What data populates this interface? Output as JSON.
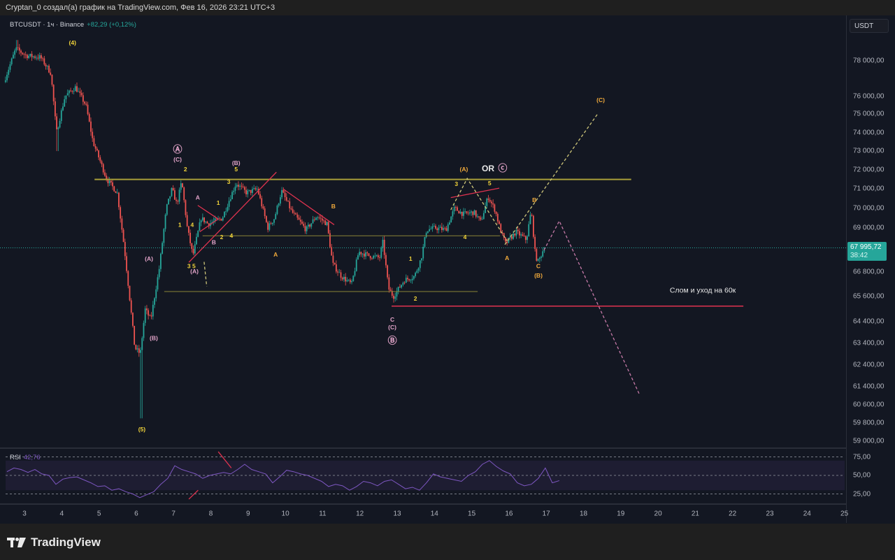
{
  "credit": "Cryptan_0 создал(а) график на TradingView.com, Фев 16, 2026 23:21 UTC+3",
  "legend": {
    "symbol": "BTCUSDT · 1ч · Binance",
    "change": "+82,29 (+0,12%)"
  },
  "currency_button": "USDT",
  "last_price": {
    "value": 67995.72,
    "label": "67 995,72",
    "countdown": "38:42"
  },
  "brand": "TradingView",
  "colors": {
    "bg": "#131722",
    "up": "#26a69a",
    "down": "#ef5350",
    "rsi": "#7e57c2",
    "wave_yellow": "#f2d43a",
    "wave_orange": "#f0a93b",
    "wave_pink": "#e1a3c8",
    "level_olive": "#a99f3a",
    "red_line": "#e0334f"
  },
  "chart_data": [
    {
      "type": "candlestick",
      "scale": "log",
      "x_unit": "day of February 2026 (1h candles)",
      "x_ticks": [
        "3",
        "4",
        "5",
        "6",
        "7",
        "8",
        "9",
        "10",
        "11",
        "12",
        "13",
        "14",
        "15",
        "16",
        "17",
        "18",
        "19",
        "20",
        "21",
        "22",
        "23",
        "24",
        "25"
      ],
      "y_ticks": [
        "78 000,00",
        "76 000,00",
        "75 000,00",
        "74 000,00",
        "73 000,00",
        "72 000,00",
        "71 000,00",
        "70 000,00",
        "69 000,00",
        "66 800,00",
        "65 600,00",
        "64 400,00",
        "63 400,00",
        "62 400,00",
        "61 400,00",
        "60 600,00",
        "59 800,00",
        "59 000,00"
      ],
      "y_tick_values": [
        78000,
        76000,
        75000,
        74000,
        73000,
        72000,
        71000,
        70000,
        69000,
        66800,
        65600,
        64400,
        63400,
        62400,
        61400,
        60600,
        59800,
        59000
      ],
      "ylim": [
        58600,
        80500
      ],
      "xlim": [
        2.35,
        25.05
      ],
      "close_path": [
        [
          2.49,
          76800
        ],
        [
          2.81,
          78700
        ],
        [
          3.09,
          78300
        ],
        [
          3.47,
          78200
        ],
        [
          3.75,
          77300
        ],
        [
          3.9,
          74000
        ],
        [
          4.13,
          76000
        ],
        [
          4.41,
          76500
        ],
        [
          4.69,
          75500
        ],
        [
          4.88,
          73500
        ],
        [
          5.25,
          71500
        ],
        [
          5.53,
          70800
        ],
        [
          5.72,
          68000
        ],
        [
          6.0,
          63200
        ],
        [
          6.15,
          62900
        ],
        [
          6.28,
          65000
        ],
        [
          6.43,
          64500
        ],
        [
          6.66,
          67000
        ],
        [
          6.85,
          70000
        ],
        [
          7.0,
          71000
        ],
        [
          7.13,
          70200
        ],
        [
          7.26,
          71400
        ],
        [
          7.41,
          69000
        ],
        [
          7.56,
          67600
        ],
        [
          7.78,
          69500
        ],
        [
          7.97,
          69200
        ],
        [
          8.35,
          69500
        ],
        [
          8.53,
          70400
        ],
        [
          8.72,
          71300
        ],
        [
          9.0,
          70800
        ],
        [
          9.29,
          71000
        ],
        [
          9.57,
          69000
        ],
        [
          9.75,
          69500
        ],
        [
          9.94,
          70900
        ],
        [
          10.22,
          69800
        ],
        [
          10.6,
          68900
        ],
        [
          10.88,
          69600
        ],
        [
          11.16,
          69200
        ],
        [
          11.31,
          67200
        ],
        [
          11.54,
          66600
        ],
        [
          11.82,
          66200
        ],
        [
          12.01,
          67800
        ],
        [
          12.29,
          67600
        ],
        [
          12.57,
          67500
        ],
        [
          12.66,
          68300
        ],
        [
          12.81,
          66000
        ],
        [
          12.94,
          65600
        ],
        [
          13.23,
          66400
        ],
        [
          13.51,
          66600
        ],
        [
          13.69,
          67500
        ],
        [
          13.83,
          68900
        ],
        [
          14.07,
          69000
        ],
        [
          14.35,
          68900
        ],
        [
          14.58,
          70000
        ],
        [
          14.82,
          69700
        ],
        [
          15.1,
          69800
        ],
        [
          15.29,
          69300
        ],
        [
          15.48,
          70600
        ],
        [
          15.67,
          69900
        ],
        [
          15.81,
          68900
        ],
        [
          15.95,
          68200
        ],
        [
          16.23,
          68800
        ],
        [
          16.51,
          68400
        ],
        [
          16.64,
          69900
        ],
        [
          16.75,
          67600
        ],
        [
          16.83,
          67300
        ],
        [
          16.98,
          67996
        ]
      ],
      "extreme_wicks": [
        [
          6.15,
          60000
        ],
        [
          2.81,
          79200
        ],
        [
          3.9,
          73000
        ]
      ],
      "levels": [
        {
          "price": 71500,
          "from": 4.88,
          "to": 19.28,
          "color": "#a99f3a",
          "width": 2
        },
        {
          "price": 68600,
          "from": 7.78,
          "to": 15.76,
          "color": "#8a8436",
          "width": 1
        },
        {
          "price": 65850,
          "from": 6.75,
          "to": 15.16,
          "color": "#8a8436",
          "width": 1
        },
        {
          "price": 65150,
          "from": 12.85,
          "to": 22.29,
          "color": "#e0334f",
          "width": 1.5
        }
      ],
      "trendlines": [
        {
          "points": [
            [
              7.41,
              67280
            ],
            [
              9.76,
              71880
            ]
          ],
          "color": "#e0334f",
          "dash": false
        },
        {
          "points": [
            [
              9.94,
              71000
            ],
            [
              11.31,
              69160
            ]
          ],
          "color": "#e0334f",
          "dash": false
        },
        {
          "points": [
            [
              14.44,
              70550
            ],
            [
              15.74,
              71040
            ]
          ],
          "color": "#e0334f",
          "dash": false
        },
        {
          "points": [
            [
              7.65,
              70150
            ],
            [
              8.2,
              69450
            ],
            [
              7.7,
              68800
            ]
          ],
          "color": "#e0334f",
          "dash": false
        },
        {
          "points": [
            [
              14.44,
              69920
            ],
            [
              14.88,
              71550
            ],
            [
              15.95,
              68340
            ]
          ],
          "color": "#cfc77a",
          "dash": true
        },
        {
          "points": [
            [
              15.89,
              68160
            ],
            [
              18.38,
              75020
            ]
          ],
          "color": "#cfc77a",
          "dash": true
        },
        {
          "points": [
            [
              7.82,
              67300
            ],
            [
              7.89,
              66100
            ]
          ],
          "color": "#cfc77a",
          "dash": true
        },
        {
          "points": [
            [
              16.94,
              67880
            ],
            [
              17.35,
              69350
            ],
            [
              19.51,
              61030
            ]
          ],
          "color": "#c77aa8",
          "dash": true
        }
      ],
      "annotations": [
        {
          "text": "(4)",
          "day": 4.29,
          "price": 79050,
          "color": "#f2d43a"
        },
        {
          "text": "(C)",
          "day": 18.46,
          "price": 75790,
          "color": "#f0a93b"
        },
        {
          "text": "Ⓐ",
          "day": 7.11,
          "price": 73040,
          "color": "#e1a3c8"
        },
        {
          "text": "(C)",
          "day": 7.11,
          "price": 72560,
          "color": "#e1a3c8"
        },
        {
          "text": "2",
          "day": 7.32,
          "price": 72040,
          "color": "#f2d43a"
        },
        {
          "text": "(B)",
          "day": 8.68,
          "price": 72370,
          "color": "#e1a3c8"
        },
        {
          "text": "5",
          "day": 8.68,
          "price": 72040,
          "color": "#f2d43a"
        },
        {
          "text": "3",
          "day": 8.48,
          "price": 71380,
          "color": "#f2d43a"
        },
        {
          "text": "A",
          "day": 7.65,
          "price": 70550,
          "color": "#e1a3c8"
        },
        {
          "text": "1",
          "day": 8.2,
          "price": 70290,
          "color": "#f2d43a"
        },
        {
          "text": "1",
          "day": 7.17,
          "price": 69150,
          "color": "#f2d43a"
        },
        {
          "text": "4",
          "day": 7.5,
          "price": 69150,
          "color": "#f2d43a"
        },
        {
          "text": "4",
          "day": 8.55,
          "price": 68610,
          "color": "#f2d43a"
        },
        {
          "text": "2",
          "day": 8.29,
          "price": 68540,
          "color": "#f2d43a"
        },
        {
          "text": "B",
          "day": 8.08,
          "price": 68270,
          "color": "#e1a3c8"
        },
        {
          "text": "A",
          "day": 9.74,
          "price": 67670,
          "color": "#f0a93b"
        },
        {
          "text": "(A)",
          "day": 6.34,
          "price": 67460,
          "color": "#e1a3c8"
        },
        {
          "text": "3 5",
          "day": 7.48,
          "price": 67100,
          "color": "#f2d43a"
        },
        {
          "text": "(A)",
          "day": 7.56,
          "price": 66830,
          "color": "#e1a3c8"
        },
        {
          "text": "B",
          "day": 11.29,
          "price": 70110,
          "color": "#f0a93b"
        },
        {
          "text": "1",
          "day": 13.36,
          "price": 67460,
          "color": "#f2d43a"
        },
        {
          "text": "2",
          "day": 13.49,
          "price": 65520,
          "color": "#f2d43a"
        },
        {
          "text": "C",
          "day": 12.87,
          "price": 64520,
          "color": "#e1a3c8"
        },
        {
          "text": "(C)",
          "day": 12.87,
          "price": 64150,
          "color": "#e1a3c8"
        },
        {
          "text": "Ⓑ",
          "day": 12.87,
          "price": 63480,
          "color": "#e1a3c8"
        },
        {
          "text": "(B)",
          "day": 6.47,
          "price": 63650,
          "color": "#e1a3c8"
        },
        {
          "text": "(5)",
          "day": 6.15,
          "price": 59520,
          "color": "#f2d43a"
        },
        {
          "text": "3",
          "day": 14.59,
          "price": 71270,
          "color": "#f2d43a"
        },
        {
          "text": "5",
          "day": 15.48,
          "price": 71310,
          "color": "#f2d43a"
        },
        {
          "text": "(A)",
          "day": 14.79,
          "price": 72040,
          "color": "#f0a93b"
        },
        {
          "text": "OR",
          "day": 15.44,
          "price": 72040,
          "color": "#e8e8e8"
        },
        {
          "text": "ⓒ",
          "day": 15.83,
          "price": 72040,
          "color": "#e1a3c8"
        },
        {
          "text": "4",
          "day": 14.82,
          "price": 68540,
          "color": "#f2d43a"
        },
        {
          "text": "A",
          "day": 15.95,
          "price": 67500,
          "color": "#f0a93b"
        },
        {
          "text": "B",
          "day": 16.68,
          "price": 70430,
          "color": "#f0a93b"
        },
        {
          "text": "C",
          "day": 16.79,
          "price": 67090,
          "color": "#f0a93b"
        },
        {
          "text": "(B)",
          "day": 16.79,
          "price": 66640,
          "color": "#f0a93b"
        },
        {
          "text": "Слом и уход на 60к",
          "day": 21.2,
          "price": 65900,
          "color": "#e8e8e8"
        }
      ]
    },
    {
      "type": "line",
      "title": "RSI",
      "last_value": "42,76",
      "y_ticks": [
        "75,00",
        "50,00",
        "25,00"
      ],
      "y_tick_values": [
        75,
        50,
        25
      ],
      "band": [
        30,
        70
      ],
      "ylim": [
        5,
        85
      ],
      "start_day": 2.53,
      "step_days": 0.1876,
      "values": [
        55,
        60,
        58,
        54,
        58,
        52,
        50,
        38,
        45,
        47,
        48,
        44,
        40,
        35,
        36,
        30,
        32,
        28,
        25,
        20,
        24,
        28,
        38,
        46,
        63,
        58,
        55,
        52,
        46,
        50,
        52,
        54,
        52,
        58,
        65,
        58,
        55,
        52,
        40,
        48,
        57,
        55,
        52,
        50,
        46,
        42,
        35,
        38,
        36,
        30,
        35,
        42,
        40,
        36,
        42,
        44,
        38,
        32,
        34,
        30,
        40,
        52,
        48,
        46,
        44,
        42,
        50,
        55,
        65,
        70,
        62,
        56,
        52,
        40,
        36,
        38,
        46,
        60,
        40,
        43
      ],
      "markers": [
        {
          "points": [
            [
              8.2,
              82
            ],
            [
              8.55,
              60
            ]
          ],
          "color": "#e0334f"
        },
        {
          "points": [
            [
              7.41,
              18
            ],
            [
              7.66,
              30
            ]
          ],
          "color": "#e0334f"
        }
      ]
    }
  ]
}
